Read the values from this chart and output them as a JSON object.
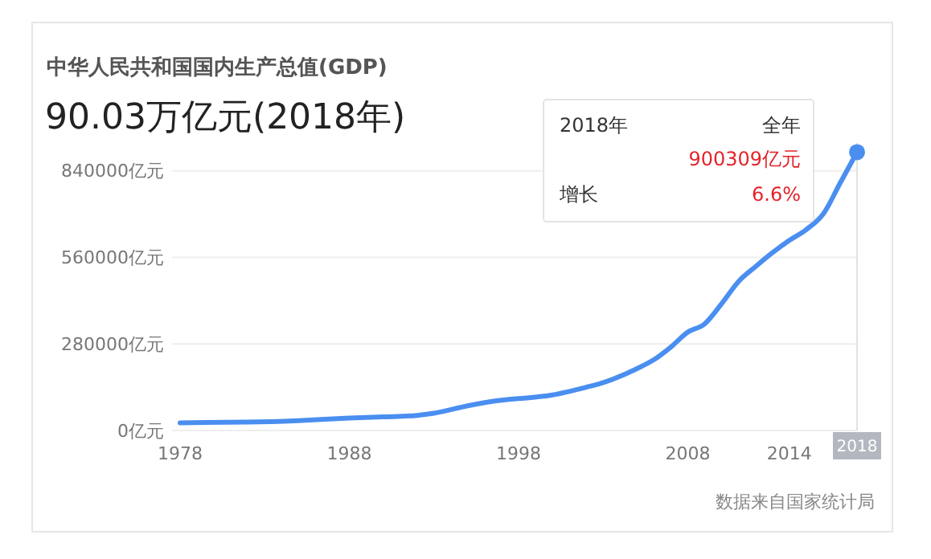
{
  "chart_data": {
    "type": "line",
    "title": "中华人民共和国国内生产总值(GDP)",
    "subtitle": "90.03万亿元(2018年)",
    "x": [
      1978,
      1982,
      1985,
      1988,
      1990,
      1992,
      1993,
      1995,
      1997,
      1998,
      2000,
      2002,
      2003,
      2005,
      2006,
      2007,
      2008,
      2009,
      2010,
      2011,
      2012,
      2013,
      2014,
      2015,
      2016,
      2017,
      2018
    ],
    "series": [
      {
        "color": "#4a8ef0",
        "values": [
          25000,
          27000,
          32000,
          40000,
          44000,
          49000,
          56000,
          80000,
          98000,
          103000,
          115000,
          140000,
          155000,
          200000,
          229000,
          270000,
          318000,
          345000,
          410000,
          482000,
          530000,
          575000,
          615000,
          650000,
          700000,
          800000,
          900309
        ]
      }
    ],
    "xlim": [
      1978,
      2018
    ],
    "xticks": [
      1978,
      1988,
      1998,
      2008,
      2014,
      2018
    ],
    "ylim": [
      0,
      930000
    ],
    "yticks": [
      {
        "value": 0,
        "label": "0亿元"
      },
      {
        "value": 280000,
        "label": "280000亿元"
      },
      {
        "value": 560000,
        "label": "560000亿元"
      },
      {
        "value": 840000,
        "label": "840000亿元"
      }
    ],
    "grid": "y",
    "marker": "none",
    "line_style": "solid",
    "annotations": [
      "数据来自国家统计局",
      "2018年",
      "全年",
      {
        "text": "900309亿元",
        "x": 2018,
        "y": 900309
      },
      "增长",
      "6.6%"
    ]
  }
}
